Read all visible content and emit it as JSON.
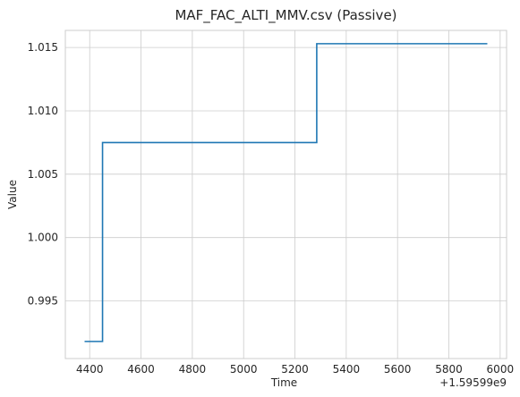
{
  "chart_data": {
    "type": "line",
    "title": "MAF_FAC_ALTI_MMV.csv (Passive)",
    "xlabel": "Time",
    "ylabel": "Value",
    "x_offset_label": "+1.59599e9",
    "xlim": [
      4305,
      6025
    ],
    "ylim": [
      0.99045,
      1.01635
    ],
    "xticks": [
      4400,
      4600,
      4800,
      5000,
      5200,
      5400,
      5600,
      5800,
      6000
    ],
    "yticks": [
      0.995,
      1.0,
      1.005,
      1.01,
      1.015
    ],
    "ytick_labels": [
      "0.995",
      "1.000",
      "1.005",
      "1.010",
      "1.015"
    ],
    "grid": true,
    "line_color": "#1f77b4",
    "series": [
      {
        "x": [
          4380,
          4450,
          4450,
          5285,
          5285,
          5950
        ],
        "y": [
          0.9918,
          0.9918,
          1.0075,
          1.0075,
          1.0153,
          1.0153
        ]
      }
    ]
  }
}
